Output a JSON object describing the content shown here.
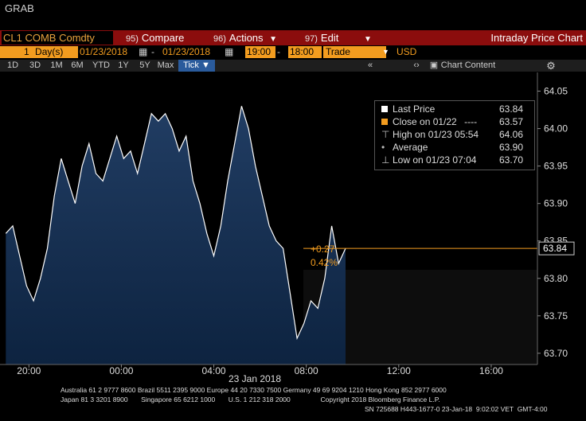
{
  "window_title": "GRAB",
  "toolbar": {
    "ticker": "CL1 COMB Comdty",
    "compare": {
      "num": "95)",
      "label": "Compare"
    },
    "actions": {
      "num": "96)",
      "label": "Actions"
    },
    "edit": {
      "num": "97)",
      "label": "Edit"
    },
    "title": "Intraday Price Chart"
  },
  "settings": {
    "period_count": "1",
    "period_unit": "Day(s)",
    "start_date": "01/23/2018",
    "dash": "-",
    "end_date": "01/23/2018",
    "start_time": "19:00",
    "time_dash": "-",
    "end_time": "18:00",
    "field": "Trade",
    "currency": "USD"
  },
  "ranges": [
    "1D",
    "3D",
    "1M",
    "6M",
    "YTD",
    "1Y",
    "5Y",
    "Max"
  ],
  "tick_label": "Tick",
  "chart_content_label": "Chart Content",
  "legend": {
    "last_label": "Last Price",
    "last_value": "63.84",
    "close_label": "Close on 01/22",
    "close_dashes": "----",
    "close_value": "63.57",
    "high_label": "High on 01/23 05:54",
    "high_value": "64.06",
    "avg_label": "Average",
    "avg_value": "63.90",
    "low_label": "Low on 01/23 07:04",
    "low_value": "63.70"
  },
  "change": {
    "abs": "+0.27",
    "pct": "0.42%"
  },
  "last_price_tag": "63.84",
  "colors": {
    "accent": "#f29c1f",
    "menubar": "#8b0d0d",
    "area_top": "#213d63",
    "area_bottom": "#0d2340",
    "line": "#ffffff"
  },
  "chart_data": {
    "type": "area",
    "title": "Intraday Price Chart",
    "x_ticks": [
      "20:00",
      "00:00",
      "04:00",
      "08:00",
      "12:00",
      "16:00"
    ],
    "x_date_label": "23 Jan 2018",
    "y_ticks": [
      "64.05",
      "64.00",
      "63.95",
      "63.90",
      "63.85",
      "63.80",
      "63.75",
      "63.70"
    ],
    "ylim": [
      63.685,
      64.075
    ],
    "x_hours": [
      19.0,
      19.3,
      19.6,
      19.9,
      20.2,
      20.5,
      20.8,
      21.1,
      21.4,
      21.7,
      22.0,
      22.3,
      22.6,
      22.9,
      23.2,
      23.5,
      23.8,
      24.1,
      24.4,
      24.7,
      25.0,
      25.3,
      25.6,
      25.9,
      26.2,
      26.5,
      26.8,
      27.1,
      27.4,
      27.7,
      28.0,
      28.3,
      28.6,
      28.9,
      29.2,
      29.5,
      29.8,
      30.1,
      30.4,
      30.7,
      31.0,
      31.3,
      31.6,
      31.9,
      32.2,
      32.5,
      32.8,
      33.1,
      33.4,
      33.7
    ],
    "values": [
      63.86,
      63.87,
      63.83,
      63.79,
      63.77,
      63.8,
      63.84,
      63.91,
      63.96,
      63.93,
      63.9,
      63.95,
      63.98,
      63.94,
      63.93,
      63.96,
      63.99,
      63.96,
      63.97,
      63.94,
      63.98,
      64.02,
      64.01,
      64.02,
      64.0,
      63.97,
      63.99,
      63.93,
      63.9,
      63.86,
      63.83,
      63.87,
      63.93,
      63.98,
      64.03,
      64.0,
      63.95,
      63.91,
      63.87,
      63.85,
      63.84,
      63.78,
      63.72,
      63.74,
      63.77,
      63.76,
      63.8,
      63.87,
      63.82,
      63.84
    ],
    "prev_close": 63.57,
    "last": 63.84,
    "xlim_hours": [
      18.75,
      42.0
    ]
  },
  "footer": {
    "line1": "Australia 61 2 9777 8600 Brazil 5511 2395 9000 Europe 44 20 7330 7500 Germany 49 69 9204 1210 Hong Kong 852 2977 6000",
    "line2": "Japan 81 3 3201 8900       Singapore 65 6212 1000       U.S. 1 212 318 2000                Copyright 2018 Bloomberg Finance L.P.",
    "line3": "SN 725688 H443-1677-0 23-Jan-18  9:02:02 VET  GMT-4:00"
  }
}
